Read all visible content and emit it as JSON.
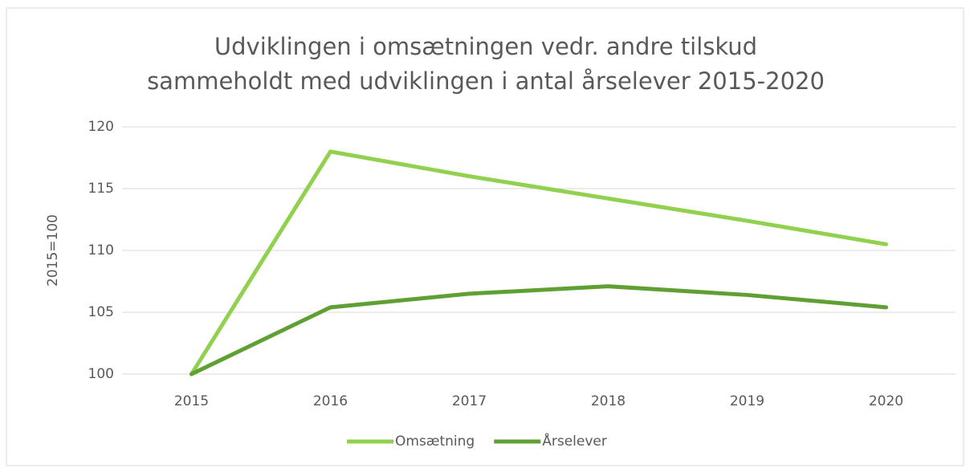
{
  "chart_data": {
    "type": "line",
    "title": [
      "Udviklingen i omsætningen vedr. andre tilskud",
      "sammeholdt med udviklingen i antal årselever 2015-2020"
    ],
    "y_label": "2015=100",
    "categories": [
      "2015",
      "2016",
      "2017",
      "2018",
      "2019",
      "2020"
    ],
    "series": [
      {
        "name": "Omsætning",
        "color": "#92d050",
        "values": [
          100,
          118.0,
          116.0,
          114.2,
          112.4,
          110.5
        ]
      },
      {
        "name": "Årselever",
        "color": "#5ea033",
        "values": [
          100,
          105.4,
          106.5,
          107.1,
          106.4,
          105.4
        ]
      }
    ],
    "ylim": [
      100,
      120
    ],
    "yticks": [
      100,
      105,
      110,
      115,
      120
    ],
    "grid": true,
    "legend": "bottom"
  }
}
